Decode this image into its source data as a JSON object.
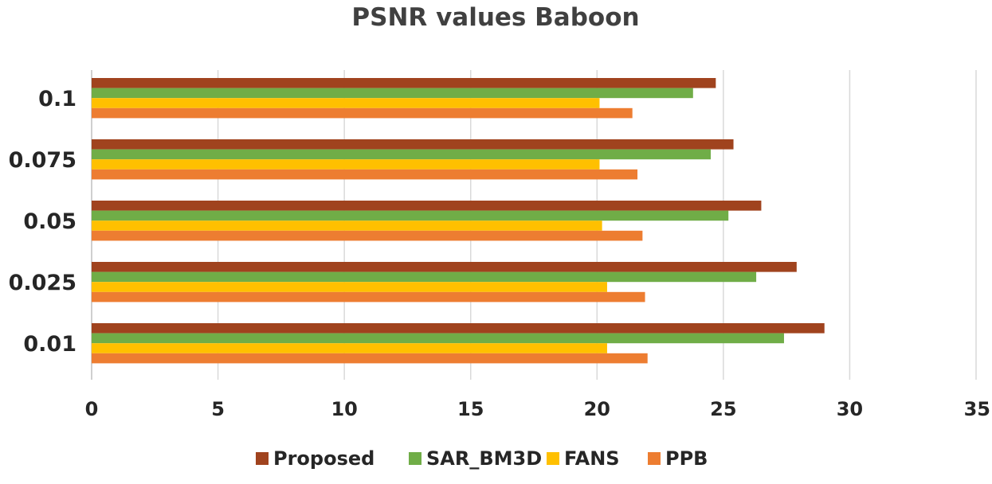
{
  "chart_data": {
    "type": "bar",
    "orientation": "horizontal",
    "title": "PSNR values Baboon",
    "xlabel": "",
    "ylabel": "",
    "xlim": [
      0,
      35
    ],
    "x_ticks": [
      "0",
      "5",
      "10",
      "15",
      "20",
      "25",
      "30",
      "35"
    ],
    "x_tick_values": [
      0,
      5,
      10,
      15,
      20,
      25,
      30,
      35
    ],
    "grid": true,
    "legend_position": "bottom",
    "categories": [
      "0.1",
      "0.075",
      "0.05",
      "0.025",
      "0.01"
    ],
    "series": [
      {
        "name": "Proposed",
        "color": "#a0431e",
        "values": [
          24.7,
          25.4,
          26.5,
          27.9,
          29.0
        ]
      },
      {
        "name": "SAR_BM3D",
        "color": "#70ad47",
        "values": [
          23.8,
          24.5,
          25.2,
          26.3,
          27.4
        ]
      },
      {
        "name": "FANS",
        "color": "#ffc000",
        "values": [
          20.1,
          20.1,
          20.2,
          20.4,
          20.4
        ]
      },
      {
        "name": "PPB",
        "color": "#ed7d31",
        "values": [
          21.4,
          21.6,
          21.8,
          21.9,
          22.0
        ]
      }
    ]
  }
}
